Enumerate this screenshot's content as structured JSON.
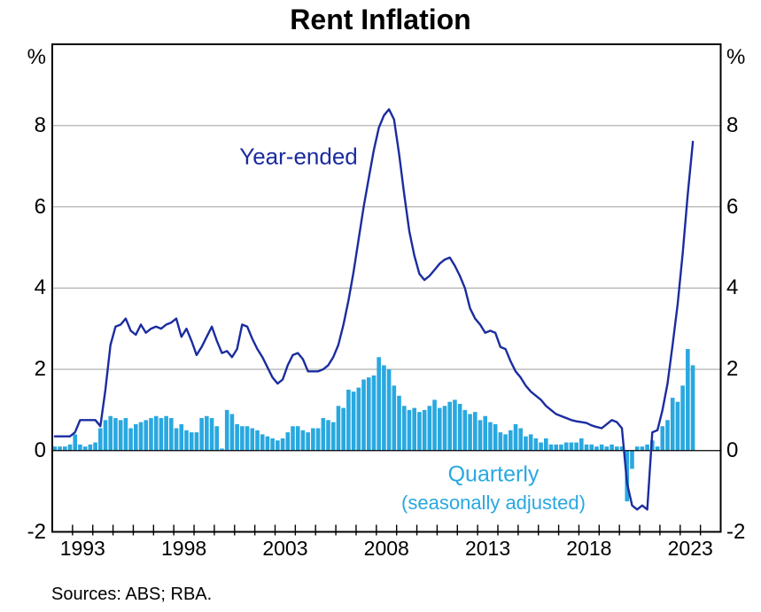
{
  "page": {
    "title": "Rent Inflation",
    "unit_left": "%",
    "unit_right": "%",
    "source_note": "Sources: ABS; RBA."
  },
  "annotations": {
    "line_label": "Year-ended",
    "bar_label": "Quarterly",
    "bar_sublabel": "(seasonally adjusted)"
  },
  "chart_data": {
    "type": "combo-bar-line",
    "title": "Rent Inflation",
    "frequency": "quarterly",
    "x": {
      "start": "1992Q1",
      "end": "2023Q3",
      "axis_range": [
        1992,
        2025
      ],
      "tick_years": [
        1993,
        1998,
        2003,
        2008,
        2013,
        2018,
        2023
      ],
      "minor_tick_step_years": 1
    },
    "y": {
      "range": [
        -2,
        10
      ],
      "tick_labels": [
        "-2",
        "0",
        "2",
        "4",
        "6",
        "8"
      ],
      "tick_values": [
        -2,
        0,
        2,
        4,
        6,
        8
      ],
      "gridlines": [
        2,
        4,
        6,
        8
      ],
      "zero_line": true,
      "unit": "%",
      "grid_color": "#b0b0b0",
      "zero_line_color": "#000000",
      "frame_color": "#000000"
    },
    "series": [
      {
        "name": "Year-ended",
        "type": "line",
        "color": "#1b2c9f",
        "values": [
          0.35,
          0.35,
          0.35,
          0.35,
          0.45,
          0.75,
          0.75,
          0.75,
          0.75,
          0.6,
          1.5,
          2.6,
          3.05,
          3.1,
          3.25,
          2.95,
          2.85,
          3.1,
          2.9,
          3.0,
          3.05,
          3.0,
          3.1,
          3.15,
          3.25,
          2.8,
          3.0,
          2.7,
          2.35,
          2.55,
          2.8,
          3.05,
          2.7,
          2.4,
          2.45,
          2.3,
          2.5,
          3.1,
          3.05,
          2.75,
          2.5,
          2.3,
          2.05,
          1.8,
          1.65,
          1.75,
          2.1,
          2.35,
          2.4,
          2.25,
          1.95,
          1.95,
          1.95,
          2.0,
          2.1,
          2.3,
          2.6,
          3.1,
          3.7,
          4.4,
          5.2,
          6.0,
          6.7,
          7.4,
          7.95,
          8.25,
          8.4,
          8.15,
          7.3,
          6.3,
          5.4,
          4.8,
          4.35,
          4.2,
          4.3,
          4.45,
          4.6,
          4.7,
          4.75,
          4.55,
          4.3,
          4.0,
          3.5,
          3.25,
          3.1,
          2.9,
          2.95,
          2.9,
          2.55,
          2.5,
          2.2,
          1.95,
          1.8,
          1.6,
          1.45,
          1.35,
          1.25,
          1.1,
          1.0,
          0.9,
          0.85,
          0.8,
          0.75,
          0.72,
          0.7,
          0.68,
          0.62,
          0.58,
          0.55,
          0.65,
          0.75,
          0.7,
          0.55,
          -0.8,
          -1.35,
          -1.45,
          -1.35,
          -1.45,
          0.45,
          0.5,
          1.0,
          1.65,
          2.6,
          3.6,
          4.85,
          6.3,
          7.6
        ]
      },
      {
        "name": "Quarterly (seasonally adjusted)",
        "type": "bar",
        "color": "#29a8e0",
        "values": [
          0.1,
          0.1,
          0.1,
          0.15,
          0.4,
          0.15,
          0.1,
          0.15,
          0.2,
          0.55,
          0.75,
          0.85,
          0.8,
          0.75,
          0.8,
          0.55,
          0.65,
          0.7,
          0.75,
          0.8,
          0.85,
          0.8,
          0.85,
          0.8,
          0.55,
          0.65,
          0.5,
          0.45,
          0.45,
          0.8,
          0.85,
          0.8,
          0.6,
          0.05,
          1.0,
          0.9,
          0.65,
          0.6,
          0.6,
          0.55,
          0.5,
          0.4,
          0.35,
          0.3,
          0.25,
          0.3,
          0.45,
          0.6,
          0.6,
          0.5,
          0.45,
          0.55,
          0.55,
          0.8,
          0.75,
          0.7,
          1.1,
          1.05,
          1.5,
          1.45,
          1.55,
          1.75,
          1.8,
          1.85,
          2.3,
          2.1,
          2.0,
          1.6,
          1.35,
          1.1,
          1.0,
          1.05,
          0.95,
          1.0,
          1.1,
          1.25,
          1.05,
          1.1,
          1.2,
          1.25,
          1.15,
          1.0,
          0.9,
          0.95,
          0.75,
          0.85,
          0.7,
          0.65,
          0.45,
          0.4,
          0.5,
          0.65,
          0.55,
          0.35,
          0.4,
          0.3,
          0.2,
          0.3,
          0.15,
          0.15,
          0.15,
          0.2,
          0.2,
          0.2,
          0.3,
          0.15,
          0.15,
          0.1,
          0.15,
          0.1,
          0.15,
          0.1,
          0.1,
          -1.25,
          -0.45,
          0.1,
          0.1,
          0.15,
          0.25,
          0.1,
          0.6,
          0.75,
          1.3,
          1.2,
          1.6,
          2.5,
          2.1
        ]
      }
    ],
    "legend_position": "in-plot annotations"
  }
}
